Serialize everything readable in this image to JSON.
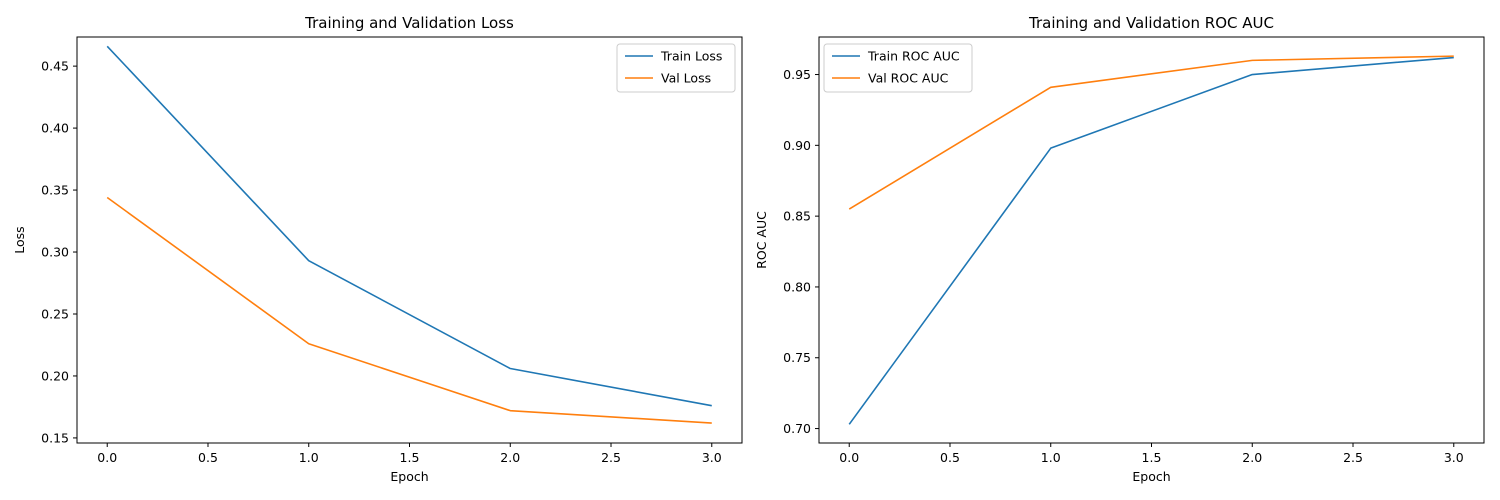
{
  "chart_data": [
    {
      "type": "line",
      "title": "Training and Validation Loss",
      "xlabel": "Epoch",
      "ylabel": "Loss",
      "xlim": [
        -0.15,
        3.15
      ],
      "ylim": [
        0.1459,
        0.4735
      ],
      "xticks": [
        0.0,
        0.5,
        1.0,
        1.5,
        2.0,
        2.5,
        3.0
      ],
      "xtick_labels": [
        "0.0",
        "0.5",
        "1.0",
        "1.5",
        "2.0",
        "2.5",
        "3.0"
      ],
      "yticks": [
        0.15,
        0.2,
        0.25,
        0.3,
        0.35,
        0.4,
        0.45
      ],
      "ytick_labels": [
        "0.15",
        "0.20",
        "0.25",
        "0.30",
        "0.35",
        "0.40",
        "0.45"
      ],
      "legend_position": "top-right",
      "x": [
        0,
        1,
        2,
        3
      ],
      "series": [
        {
          "name": "Train Loss",
          "color": "#1f77b4",
          "values": [
            0.466,
            0.293,
            0.206,
            0.176
          ]
        },
        {
          "name": "Val Loss",
          "color": "#ff7f0e",
          "values": [
            0.344,
            0.226,
            0.172,
            0.162
          ]
        }
      ]
    },
    {
      "type": "line",
      "title": "Training and Validation ROC AUC",
      "xlabel": "Epoch",
      "ylabel": "ROC AUC",
      "xlim": [
        -0.15,
        3.15
      ],
      "ylim": [
        0.6898,
        0.9765
      ],
      "xticks": [
        0.0,
        0.5,
        1.0,
        1.5,
        2.0,
        2.5,
        3.0
      ],
      "xtick_labels": [
        "0.0",
        "0.5",
        "1.0",
        "1.5",
        "2.0",
        "2.5",
        "3.0"
      ],
      "yticks": [
        0.7,
        0.75,
        0.8,
        0.85,
        0.9,
        0.95
      ],
      "ytick_labels": [
        "0.70",
        "0.75",
        "0.80",
        "0.85",
        "0.90",
        "0.95"
      ],
      "legend_position": "top-left",
      "x": [
        0,
        1,
        2,
        3
      ],
      "series": [
        {
          "name": "Train ROC AUC",
          "color": "#1f77b4",
          "values": [
            0.703,
            0.898,
            0.95,
            0.962
          ]
        },
        {
          "name": "Val ROC AUC",
          "color": "#ff7f0e",
          "values": [
            0.855,
            0.941,
            0.96,
            0.963
          ]
        }
      ]
    }
  ]
}
